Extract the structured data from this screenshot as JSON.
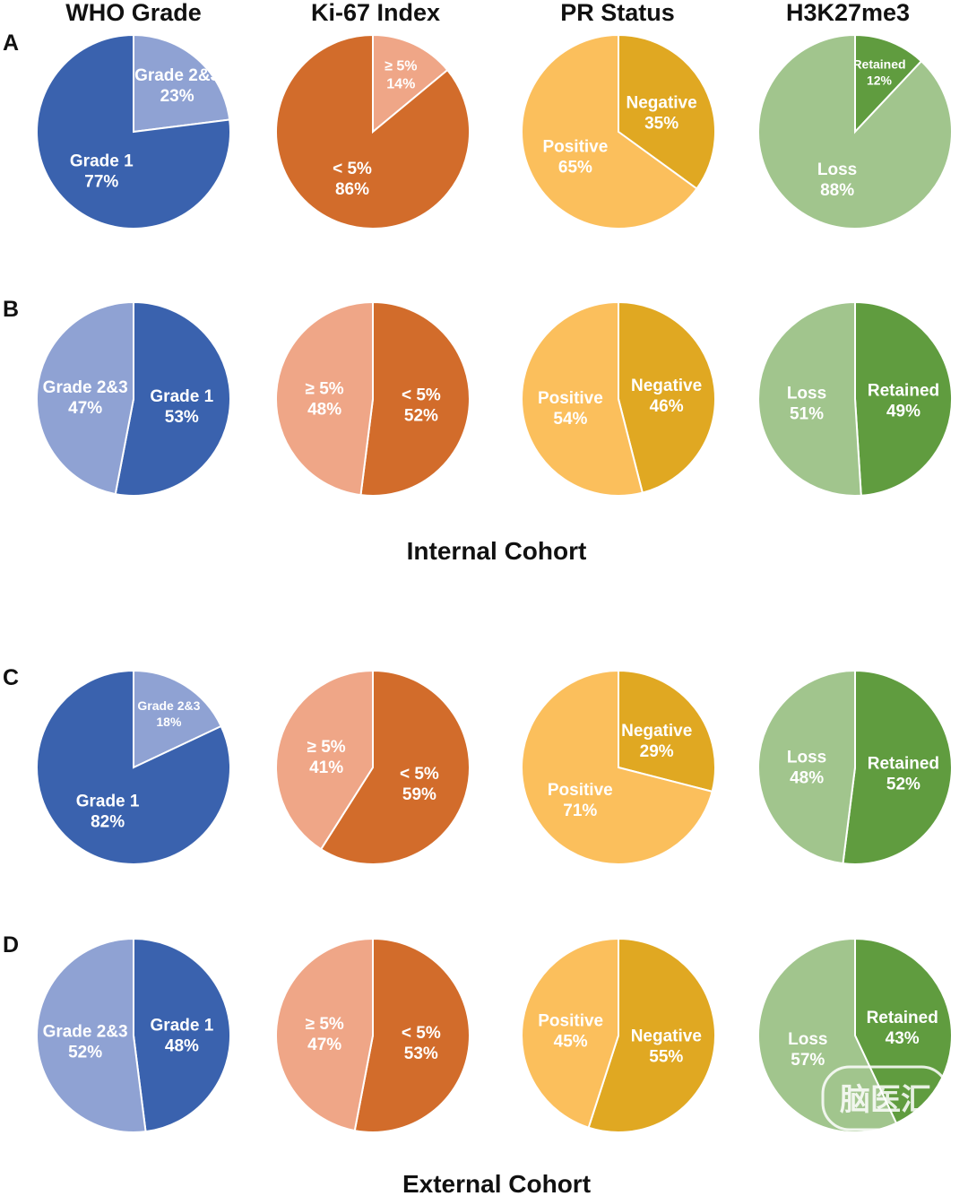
{
  "column_titles": [
    "WHO Grade",
    "Ki-67 Index",
    "PR Status",
    "H3K27me3"
  ],
  "row_labels": [
    "A",
    "B",
    "C",
    "D"
  ],
  "cohort_labels": [
    "Internal Cohort",
    "External Cohort"
  ],
  "watermark": "脑医汇",
  "colors": {
    "who_grade1": "#3a62ae",
    "who_grade23": "#8fa2d3",
    "ki67_lt5": "#d26c2b",
    "ki67_ge5": "#efa687",
    "pr_positive": "#fbbf5c",
    "pr_negative": "#e0a822",
    "h3_loss": "#a1c58d",
    "h3_retained": "#609c3f"
  },
  "chart_data": [
    {
      "type": "pie",
      "row": "A",
      "column": "WHO Grade",
      "slices": [
        {
          "label": "Grade 2&3",
          "value": 23,
          "color": "#8fa2d3"
        },
        {
          "label": "Grade 1",
          "value": 77,
          "color": "#3a62ae"
        }
      ]
    },
    {
      "type": "pie",
      "row": "A",
      "column": "Ki-67 Index",
      "slices": [
        {
          "label": "≥ 5%",
          "value": 14,
          "color": "#efa687"
        },
        {
          "label": "< 5%",
          "value": 86,
          "color": "#d26c2b"
        }
      ]
    },
    {
      "type": "pie",
      "row": "A",
      "column": "PR Status",
      "slices": [
        {
          "label": "Negative",
          "value": 35,
          "color": "#e0a822"
        },
        {
          "label": "Positive",
          "value": 65,
          "color": "#fbbf5c"
        }
      ]
    },
    {
      "type": "pie",
      "row": "A",
      "column": "H3K27me3",
      "slices": [
        {
          "label": "Retained",
          "value": 12,
          "color": "#609c3f"
        },
        {
          "label": "Loss",
          "value": 88,
          "color": "#a1c58d"
        }
      ]
    },
    {
      "type": "pie",
      "row": "B",
      "column": "WHO Grade",
      "slices": [
        {
          "label": "Grade 1",
          "value": 53,
          "color": "#3a62ae"
        },
        {
          "label": "Grade 2&3",
          "value": 47,
          "color": "#8fa2d3"
        }
      ]
    },
    {
      "type": "pie",
      "row": "B",
      "column": "Ki-67 Index",
      "slices": [
        {
          "label": "< 5%",
          "value": 52,
          "color": "#d26c2b"
        },
        {
          "label": "≥ 5%",
          "value": 48,
          "color": "#efa687"
        }
      ]
    },
    {
      "type": "pie",
      "row": "B",
      "column": "PR Status",
      "slices": [
        {
          "label": "Negative",
          "value": 46,
          "color": "#e0a822"
        },
        {
          "label": "Positive",
          "value": 54,
          "color": "#fbbf5c"
        }
      ]
    },
    {
      "type": "pie",
      "row": "B",
      "column": "H3K27me3",
      "slices": [
        {
          "label": "Retained",
          "value": 49,
          "color": "#609c3f"
        },
        {
          "label": "Loss",
          "value": 51,
          "color": "#a1c58d"
        }
      ]
    },
    {
      "type": "pie",
      "row": "C",
      "column": "WHO Grade",
      "slices": [
        {
          "label": "Grade 2&3",
          "value": 18,
          "color": "#8fa2d3"
        },
        {
          "label": "Grade 1",
          "value": 82,
          "color": "#3a62ae"
        }
      ]
    },
    {
      "type": "pie",
      "row": "C",
      "column": "Ki-67 Index",
      "slices": [
        {
          "label": "< 5%",
          "value": 59,
          "color": "#d26c2b"
        },
        {
          "label": "≥ 5%",
          "value": 41,
          "color": "#efa687"
        }
      ]
    },
    {
      "type": "pie",
      "row": "C",
      "column": "PR Status",
      "slices": [
        {
          "label": "Negative",
          "value": 29,
          "color": "#e0a822"
        },
        {
          "label": "Positive",
          "value": 71,
          "color": "#fbbf5c"
        }
      ]
    },
    {
      "type": "pie",
      "row": "C",
      "column": "H3K27me3",
      "slices": [
        {
          "label": "Retained",
          "value": 52,
          "color": "#609c3f"
        },
        {
          "label": "Loss",
          "value": 48,
          "color": "#a1c58d"
        }
      ]
    },
    {
      "type": "pie",
      "row": "D",
      "column": "WHO Grade",
      "slices": [
        {
          "label": "Grade 1",
          "value": 48,
          "color": "#3a62ae"
        },
        {
          "label": "Grade 2&3",
          "value": 52,
          "color": "#8fa2d3"
        }
      ]
    },
    {
      "type": "pie",
      "row": "D",
      "column": "Ki-67 Index",
      "slices": [
        {
          "label": "< 5%",
          "value": 53,
          "color": "#d26c2b"
        },
        {
          "label": "≥ 5%",
          "value": 47,
          "color": "#efa687"
        }
      ]
    },
    {
      "type": "pie",
      "row": "D",
      "column": "PR Status",
      "slices": [
        {
          "label": "Negative",
          "value": 55,
          "color": "#e0a822"
        },
        {
          "label": "Positive",
          "value": 45,
          "color": "#fbbf5c"
        }
      ]
    },
    {
      "type": "pie",
      "row": "D",
      "column": "H3K27me3",
      "slices": [
        {
          "label": "Retained",
          "value": 43,
          "color": "#609c3f"
        },
        {
          "label": "Loss",
          "value": 57,
          "color": "#a1c58d"
        }
      ]
    }
  ]
}
